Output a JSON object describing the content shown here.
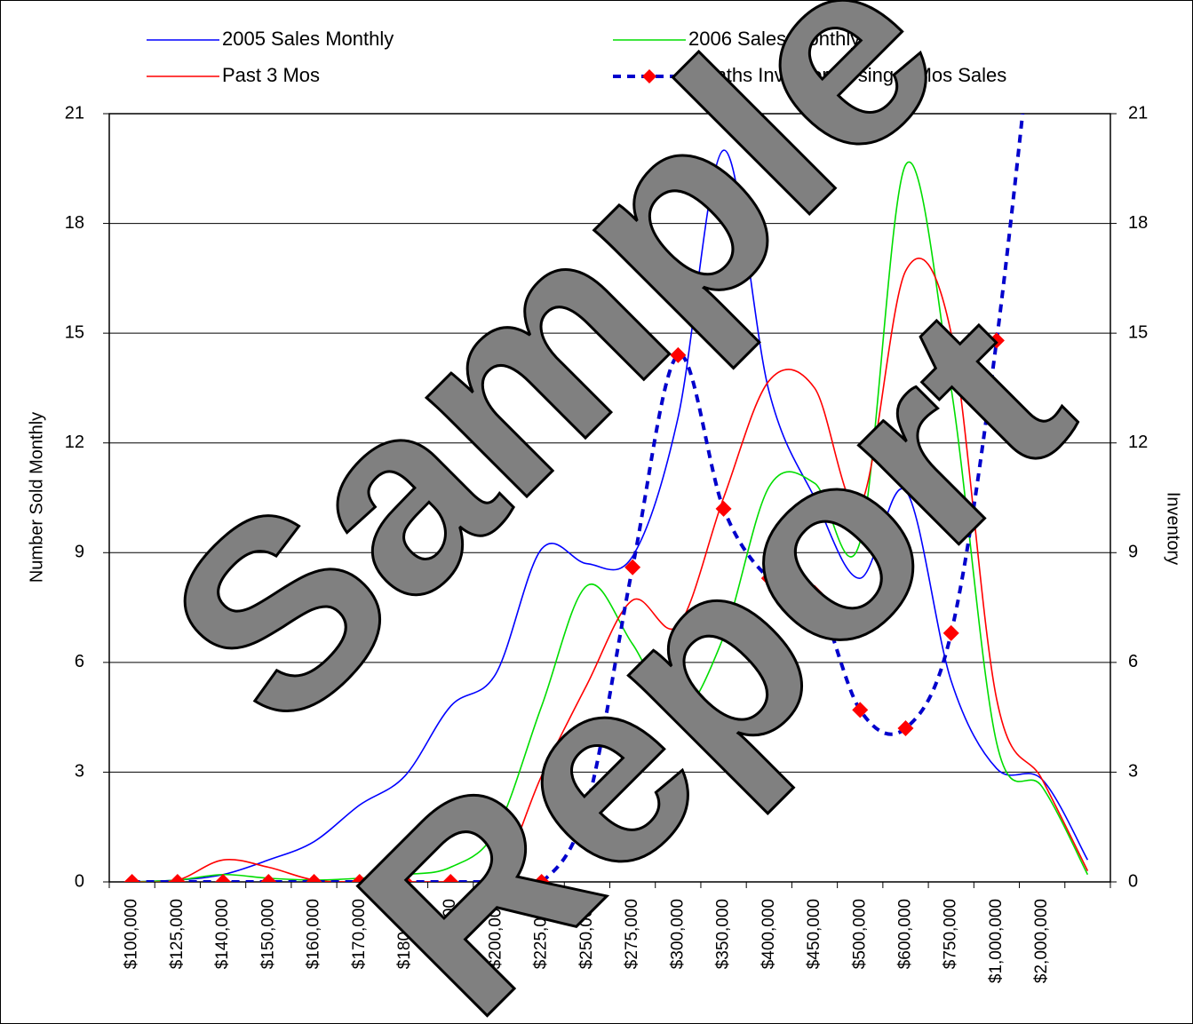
{
  "chart_data": {
    "type": "line",
    "categories": [
      "$100,000",
      "$125,000",
      "$140,000",
      "$150,000",
      "$160,000",
      "$170,000",
      "$180,000",
      "$190,000",
      "$200,000",
      "$225,000",
      "$250,000",
      "$275,000",
      "$300,000",
      "$350,000",
      "$400,000",
      "$450,000",
      "$500,000",
      "$600,000",
      "$750,000",
      "$1,000,000",
      "$2,000,000",
      null
    ],
    "series": [
      {
        "name": "2005 Sales Monthly",
        "color": "#0000ff",
        "style": "solid",
        "values": [
          0,
          0.05,
          0.2,
          0.6,
          1.1,
          2.1,
          2.9,
          4.8,
          5.7,
          9.1,
          8.7,
          8.9,
          12.7,
          20,
          13.4,
          10.5,
          8.3,
          10.7,
          5.5,
          3.1,
          2.8,
          0.6
        ]
      },
      {
        "name": "2006 Sales Monthly",
        "color": "#00dd00",
        "style": "solid",
        "values": [
          0,
          0.05,
          0.2,
          0.1,
          0.05,
          0.1,
          0.2,
          0.4,
          1.4,
          4.8,
          8.1,
          6.5,
          4.6,
          6.7,
          10.8,
          10.9,
          9.3,
          19.6,
          13.5,
          3.8,
          2.6,
          0.2
        ]
      },
      {
        "name": "Past 3 Mos",
        "color": "#ff0000",
        "style": "solid",
        "values": [
          0,
          0.05,
          0.6,
          0.4,
          0.05,
          0,
          0,
          0,
          0,
          2.9,
          5.4,
          7.7,
          7.0,
          10.5,
          13.7,
          13.5,
          10.3,
          16.7,
          15,
          5,
          2.8,
          0.3
        ]
      },
      {
        "name": "Months Inventory Using 3 Mos Sales",
        "color": "#0000cc",
        "marker_color": "#ff0000",
        "style": "dashed",
        "axis": "y2",
        "values": [
          0,
          0,
          0,
          0,
          0,
          0,
          0,
          0,
          0,
          0,
          2.1,
          8.6,
          14.4,
          10.2,
          8.3,
          7.9,
          4.7,
          4.2,
          6.8,
          14.8,
          26,
          null
        ]
      }
    ],
    "ylabel": "Number Sold Monthly",
    "y2label": "Inventory",
    "ylim": [
      0,
      21
    ],
    "yticks": [
      0,
      3,
      6,
      9,
      12,
      15,
      18,
      21
    ],
    "y2lim": [
      0,
      21
    ],
    "y2ticks": [
      0,
      3,
      6,
      9,
      12,
      15,
      18,
      21
    ],
    "grid": true,
    "watermark": [
      "Sample",
      "Report"
    ]
  }
}
